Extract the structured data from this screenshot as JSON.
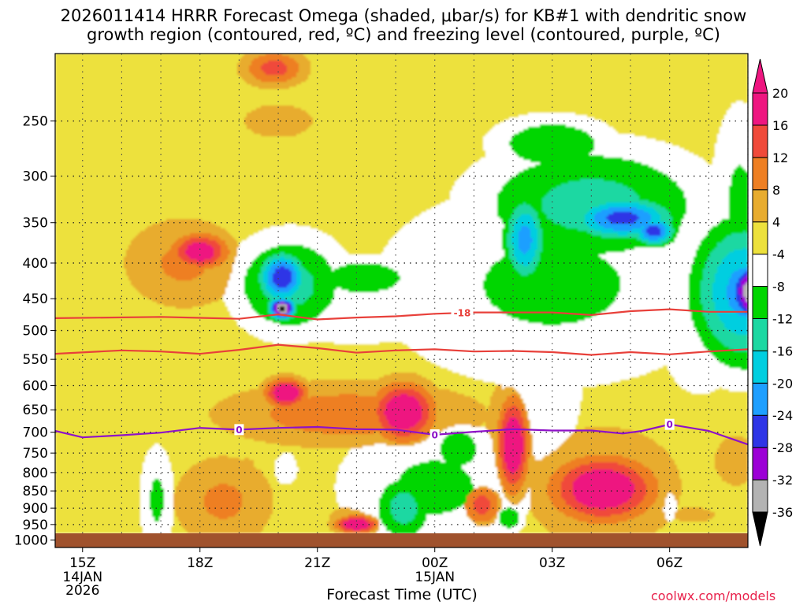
{
  "title": {
    "line1": "2026011414 HRRR Forecast Omega (shaded, μbar/s) for KB#1 with dendritic snow",
    "line2": "growth region (contoured, red, ºC) and freezing level (contoured, purple, ºC)"
  },
  "credit": "coolwx.com/models",
  "chart_data": {
    "type": "heatmap",
    "xlabel": "Forecast Time (UTC)",
    "x_ticks": [
      {
        "hour": 15,
        "label": "15Z",
        "sub": [
          "14JAN",
          "2026"
        ]
      },
      {
        "hour": 18,
        "label": "18Z",
        "sub": []
      },
      {
        "hour": 21,
        "label": "21Z",
        "sub": []
      },
      {
        "hour": 24,
        "label": "00Z",
        "sub": [
          "15JAN"
        ]
      },
      {
        "hour": 27,
        "label": "03Z",
        "sub": []
      },
      {
        "hour": 30,
        "label": "06Z",
        "sub": []
      }
    ],
    "xlim": [
      14.3,
      32
    ],
    "y_scale": "log-pressure",
    "ylim": [
      1025,
      200
    ],
    "y_ticks": [
      250,
      300,
      350,
      400,
      450,
      500,
      550,
      600,
      650,
      700,
      750,
      800,
      850,
      900,
      950,
      1000
    ],
    "grid": true,
    "ground_color": "#a0522d",
    "colorbar": {
      "levels": [
        -36,
        -32,
        -28,
        -24,
        -20,
        -16,
        -12,
        -8,
        -4,
        4,
        8,
        12,
        16,
        20
      ],
      "colors": [
        "#000000",
        "#b3b3b3",
        "#9c00d6",
        "#2e35e6",
        "#1e9fff",
        "#00cee0",
        "#1cd8a2",
        "#00d600",
        "#ffffff",
        "#ede13c",
        "#e8ac2f",
        "#ee7f23",
        "#f04a3a",
        "#ee1680"
      ]
    },
    "omega_centers": [
      {
        "t": 18.0,
        "p": 385,
        "v": 20,
        "rx": 0.55,
        "ry": 0.5
      },
      {
        "t": 17.6,
        "p": 400,
        "v": 9,
        "rx": 1.2,
        "ry": 1.3
      },
      {
        "t": 19.9,
        "p": 210,
        "v": 14,
        "rx": 0.6,
        "ry": 0.5
      },
      {
        "t": 20.0,
        "p": 250,
        "v": 5,
        "rx": 1.3,
        "ry": 0.9
      },
      {
        "t": 20.1,
        "p": 465,
        "v": -38,
        "rx": 0.25,
        "ry": 0.3
      },
      {
        "t": 20.1,
        "p": 420,
        "v": -28,
        "rx": 0.45,
        "ry": 0.7
      },
      {
        "t": 20.3,
        "p": 430,
        "v": -14,
        "rx": 1.1,
        "ry": 1.4
      },
      {
        "t": 22.2,
        "p": 420,
        "v": -12,
        "rx": 1.0,
        "ry": 0.6
      },
      {
        "t": 22.0,
        "p": 470,
        "v": -8,
        "rx": 2.3,
        "ry": 1.0
      },
      {
        "t": 20.2,
        "p": 615,
        "v": 22,
        "rx": 0.4,
        "ry": 0.4
      },
      {
        "t": 21.8,
        "p": 660,
        "v": 11,
        "rx": 2.5,
        "ry": 0.9
      },
      {
        "t": 23.2,
        "p": 655,
        "v": 22,
        "rx": 0.6,
        "ry": 0.8
      },
      {
        "t": 23.2,
        "p": 700,
        "v": 6,
        "rx": 1.3,
        "ry": 1.6
      },
      {
        "t": 18.6,
        "p": 880,
        "v": 9,
        "rx": 1.0,
        "ry": 1.3
      },
      {
        "t": 19.2,
        "p": 790,
        "v": 5,
        "rx": 0.3,
        "ry": 0.6
      },
      {
        "t": 16.9,
        "p": 875,
        "v": -9,
        "rx": 0.35,
        "ry": 1.6
      },
      {
        "t": 20.2,
        "p": 790,
        "v": -8,
        "rx": 0.25,
        "ry": 0.5
      },
      {
        "t": 22.0,
        "p": 950,
        "v": 22,
        "rx": 0.4,
        "ry": 0.25
      },
      {
        "t": 22.0,
        "p": 940,
        "v": 6,
        "rx": 0.8,
        "ry": 0.7
      },
      {
        "t": 24.0,
        "p": 840,
        "v": -9,
        "rx": 2.0,
        "ry": 2.0
      },
      {
        "t": 23.2,
        "p": 900,
        "v": -14,
        "rx": 0.6,
        "ry": 1.0
      },
      {
        "t": 24.6,
        "p": 740,
        "v": -12,
        "rx": 0.5,
        "ry": 0.7
      },
      {
        "t": 25.2,
        "p": 890,
        "v": 14,
        "rx": 0.4,
        "ry": 0.6
      },
      {
        "t": 25.9,
        "p": 930,
        "v": -12,
        "rx": 0.3,
        "ry": 0.4
      },
      {
        "t": 26.0,
        "p": 730,
        "v": 22,
        "rx": 0.3,
        "ry": 1.3
      },
      {
        "t": 26.0,
        "p": 720,
        "v": 6,
        "rx": 0.8,
        "ry": 2.8
      },
      {
        "t": 28.3,
        "p": 845,
        "v": 22,
        "rx": 1.0,
        "ry": 0.9
      },
      {
        "t": 28.3,
        "p": 840,
        "v": 8,
        "rx": 1.7,
        "ry": 1.9
      },
      {
        "t": 30.6,
        "p": 920,
        "v": 6,
        "rx": 0.6,
        "ry": 0.3
      },
      {
        "t": 31.7,
        "p": 770,
        "v": 6,
        "rx": 0.6,
        "ry": 1.0
      },
      {
        "t": 30.0,
        "p": 895,
        "v": -8,
        "rx": 0.15,
        "ry": 0.5
      },
      {
        "t": 27.0,
        "p": 430,
        "v": -9,
        "rx": 3.6,
        "ry": 3.0
      },
      {
        "t": 28.0,
        "p": 330,
        "v": -14,
        "rx": 2.3,
        "ry": 1.7
      },
      {
        "t": 27.0,
        "p": 270,
        "v": -12,
        "rx": 1.2,
        "ry": 0.8
      },
      {
        "t": 28.8,
        "p": 345,
        "v": -26,
        "rx": 1.0,
        "ry": 0.6
      },
      {
        "t": 29.6,
        "p": 360,
        "v": -27,
        "rx": 0.4,
        "ry": 0.4
      },
      {
        "t": 26.3,
        "p": 370,
        "v": -22,
        "rx": 0.4,
        "ry": 1.2
      },
      {
        "t": 26.7,
        "p": 600,
        "v": -8,
        "rx": 0.9,
        "ry": 2.5
      },
      {
        "t": 27.0,
        "p": 350,
        "v": -6,
        "rx": 0.25,
        "ry": 0.7
      },
      {
        "t": 30.8,
        "p": 500,
        "v": -8,
        "rx": 0.9,
        "ry": 2.0
      },
      {
        "t": 31.9,
        "p": 440,
        "v": -22,
        "rx": 1.0,
        "ry": 2.0
      },
      {
        "t": 32.1,
        "p": 440,
        "v": -36,
        "rx": 0.45,
        "ry": 0.9
      },
      {
        "t": 31.8,
        "p": 330,
        "v": -9,
        "rx": 0.6,
        "ry": 3.0
      }
    ],
    "dgz_contours": [
      {
        "label": "-18",
        "label_t": 24.7,
        "t": [
          14.3,
          17,
          19,
          20,
          21,
          22,
          23,
          24,
          25,
          26,
          27,
          28,
          29,
          30,
          31,
          32
        ],
        "p": [
          480,
          478,
          481,
          474,
          482,
          479,
          477,
          473,
          471,
          471,
          471,
          475,
          469,
          466,
          470,
          470
        ]
      },
      {
        "label": "",
        "label_t": null,
        "t": [
          14.3,
          16,
          17,
          18,
          19,
          20,
          21,
          22,
          23,
          24,
          25,
          26,
          27,
          28,
          29,
          30,
          31,
          32
        ],
        "p": [
          540,
          534,
          536,
          540,
          533,
          524,
          530,
          538,
          534,
          532,
          536,
          535,
          537,
          542,
          537,
          541,
          536,
          532
        ]
      }
    ],
    "freezing_contour": {
      "label": "0",
      "labels_t": [
        19.0,
        24.0,
        30.0
      ],
      "t": [
        14.3,
        15,
        16,
        17,
        18,
        19,
        20,
        21,
        22,
        23,
        24,
        25,
        26,
        27,
        28,
        28.8,
        29.3,
        30,
        31,
        32
      ],
      "p": [
        697,
        712,
        707,
        701,
        690,
        694,
        690,
        688,
        693,
        694,
        706,
        699,
        693,
        696,
        696,
        703,
        697,
        682,
        697,
        729
      ]
    }
  }
}
